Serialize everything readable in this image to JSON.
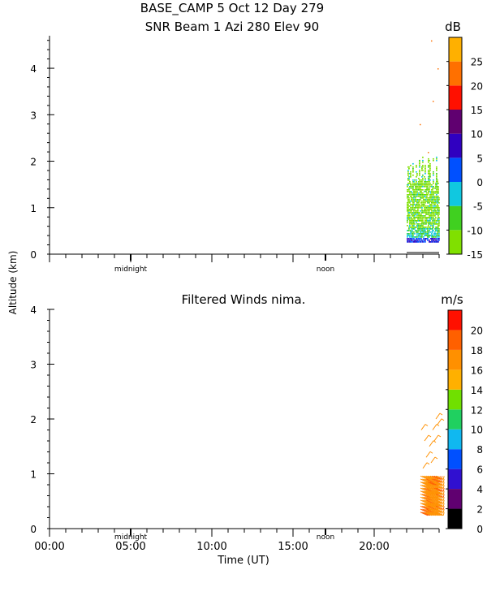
{
  "header": {
    "line1": "BASE_CAMP   5 Oct 12 Day 279",
    "line2": "SNR Beam 1 Azi 280 Elev 90"
  },
  "shared": {
    "ylabel": "Altitude (km)",
    "xlabel": "Time (UT)",
    "x_ticks": [
      "00:00",
      "05:00",
      "10:00",
      "15:00",
      "20:00"
    ],
    "day_markers": [
      "midnight",
      "noon"
    ]
  },
  "chart_data": [
    {
      "type": "heatmap",
      "title": "SNR Beam 1 Azi 280 Elev 90",
      "ylabel": "Altitude (km)",
      "xlabel": "Time (UT)",
      "xlim": [
        0,
        24
      ],
      "ylim": [
        0,
        4.7
      ],
      "y_ticks": [
        0,
        1,
        2,
        3,
        4
      ],
      "colorbar": {
        "unit": "dB",
        "min": -15,
        "max": 30,
        "tick_labels": [
          -15,
          -10,
          -5,
          0,
          5,
          10,
          15,
          20,
          25
        ],
        "colors": [
          "#80e000",
          "#40d020",
          "#10c8e0",
          "#0050ff",
          "#3000c0",
          "#600070",
          "#ff1000",
          "#ff7000",
          "#ffb000"
        ]
      },
      "data_coverage": {
        "time_range": [
          22,
          24
        ],
        "altitude_range": [
          0.2,
          2.1
        ],
        "dominant_range_db": [
          -15,
          -5
        ]
      }
    },
    {
      "type": "scatter",
      "title": "Filtered Winds nima.",
      "ylabel": "Altitude (km)",
      "xlabel": "Time (UT)",
      "xlim": [
        0,
        24
      ],
      "ylim": [
        0,
        4.0
      ],
      "y_ticks": [
        0,
        1,
        2,
        3,
        4
      ],
      "colorbar": {
        "unit": "m/s",
        "min": 0,
        "max": 22,
        "tick_labels": [
          0,
          2,
          4,
          6,
          8,
          10,
          12,
          14,
          16,
          18,
          20
        ],
        "colors": [
          "#000000",
          "#600070",
          "#3010d0",
          "#0050ff",
          "#10b8f0",
          "#20d060",
          "#70e000",
          "#ffb000",
          "#ff9000",
          "#ff6000",
          "#ff1000"
        ]
      },
      "data_coverage": {
        "time_range": [
          22.8,
          24
        ],
        "altitude_range": [
          0.3,
          2.1
        ],
        "dominant_speed_ms": [
          14,
          18
        ]
      }
    }
  ]
}
